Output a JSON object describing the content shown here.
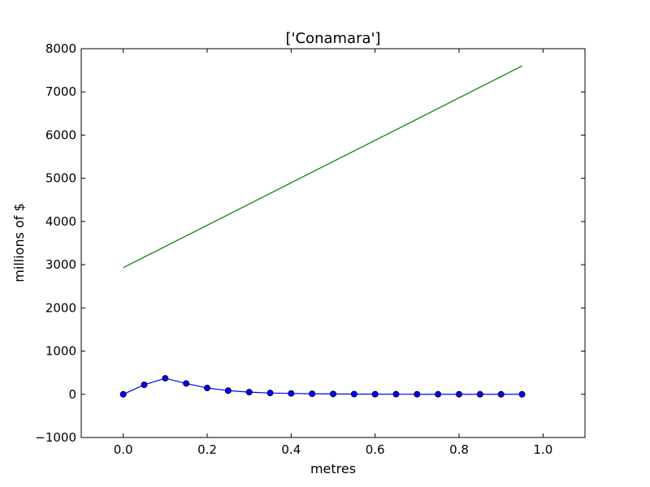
{
  "chart_data": {
    "type": "line",
    "title": "['Conamara']",
    "xlabel": "metres",
    "ylabel": "millions of $",
    "xlim": [
      -0.1,
      1.1
    ],
    "ylim": [
      -1000,
      8000
    ],
    "xticks": [
      0.0,
      0.2,
      0.4,
      0.6,
      0.8,
      1.0
    ],
    "xtick_labels": [
      "0.0",
      "0.2",
      "0.4",
      "0.6",
      "0.8",
      "1.0"
    ],
    "yticks": [
      -1000,
      0,
      1000,
      2000,
      3000,
      4000,
      5000,
      6000,
      7000,
      8000
    ],
    "ytick_labels": [
      "−1000",
      "0",
      "1000",
      "2000",
      "3000",
      "4000",
      "5000",
      "6000",
      "7000",
      "8000"
    ],
    "grid": false,
    "series": [
      {
        "color": "#0000ff",
        "marker": "circle",
        "x": [
          0.0,
          0.05,
          0.1,
          0.15,
          0.2,
          0.25,
          0.3,
          0.35,
          0.4,
          0.45,
          0.5,
          0.55,
          0.6,
          0.65,
          0.7,
          0.75,
          0.8,
          0.85,
          0.9,
          0.95
        ],
        "y": [
          0,
          220,
          370,
          250,
          145,
          85,
          50,
          30,
          20,
          12,
          8,
          5,
          3,
          2,
          1,
          1,
          1,
          0,
          0,
          0
        ]
      },
      {
        "color": "#008000",
        "marker": "none",
        "x": [
          0.0,
          0.95
        ],
        "y": [
          2930,
          7600
        ]
      }
    ]
  }
}
